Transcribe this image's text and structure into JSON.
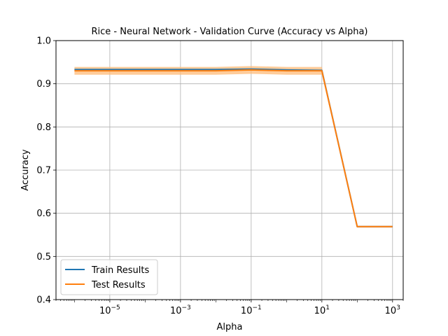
{
  "chart_data": {
    "type": "line",
    "title": "Rice - Neural Network - Validation Curve (Accuracy vs Alpha)",
    "xlabel": "Alpha",
    "ylabel": "Accuracy",
    "xscale": "log",
    "xlim": [
      3e-07,
      2000
    ],
    "ylim": [
      0.4,
      1.0
    ],
    "x": [
      1e-06,
      1e-05,
      0.0001,
      0.001,
      0.01,
      0.1,
      1,
      10,
      100,
      1000
    ],
    "x_ticks": [
      {
        "value": 1e-05,
        "base": "10",
        "exp": "−5"
      },
      {
        "value": 0.001,
        "base": "10",
        "exp": "−3"
      },
      {
        "value": 0.1,
        "base": "10",
        "exp": "−1"
      },
      {
        "value": 10,
        "base": "10",
        "exp": "1"
      },
      {
        "value": 1000,
        "base": "10",
        "exp": "3"
      }
    ],
    "y_ticks": [
      "0.4",
      "0.5",
      "0.6",
      "0.7",
      "0.8",
      "0.9",
      "1.0"
    ],
    "grid": true,
    "legend_position": "lower-left",
    "series": [
      {
        "name": "Train Results",
        "color": "#1f77b4",
        "values": [
          0.933,
          0.933,
          0.933,
          0.933,
          0.933,
          0.934,
          0.932,
          0.931,
          0.569,
          0.569
        ],
        "band_lower": [
          0.93,
          0.93,
          0.93,
          0.93,
          0.93,
          0.931,
          0.929,
          0.928,
          0.568,
          0.568
        ],
        "band_upper": [
          0.936,
          0.936,
          0.936,
          0.936,
          0.936,
          0.937,
          0.935,
          0.934,
          0.57,
          0.57
        ]
      },
      {
        "name": "Test Results",
        "color": "#ff7f0e",
        "band_color": "#ffbb78",
        "values": [
          0.93,
          0.93,
          0.93,
          0.93,
          0.93,
          0.932,
          0.93,
          0.93,
          0.569,
          0.569
        ],
        "band_lower": [
          0.921,
          0.921,
          0.921,
          0.921,
          0.921,
          0.923,
          0.921,
          0.921,
          0.567,
          0.567
        ],
        "band_upper": [
          0.939,
          0.939,
          0.939,
          0.939,
          0.939,
          0.941,
          0.939,
          0.939,
          0.571,
          0.571
        ]
      }
    ]
  }
}
